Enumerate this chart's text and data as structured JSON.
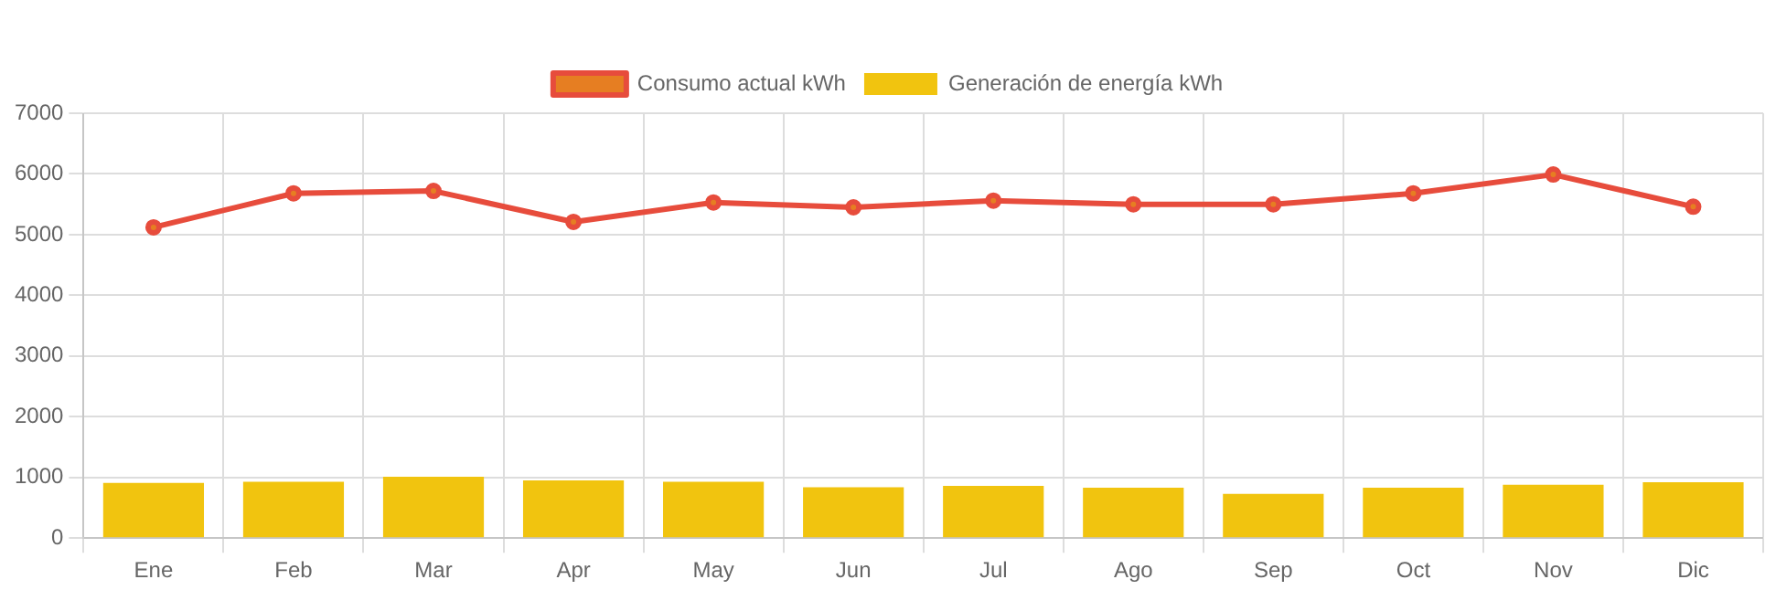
{
  "chart_data": {
    "type": "bar",
    "categories": [
      "Ene",
      "Feb",
      "Mar",
      "Apr",
      "May",
      "Jun",
      "Jul",
      "Ago",
      "Sep",
      "Oct",
      "Nov",
      "Dic"
    ],
    "series": [
      {
        "name": "Consumo actual kWh",
        "type": "line",
        "color": "#e74c3c",
        "values": [
          5120,
          5680,
          5720,
          5210,
          5530,
          5450,
          5560,
          5500,
          5500,
          5680,
          5990,
          5460
        ]
      },
      {
        "name": "Generación de energía kWh",
        "color": "#f1c40f",
        "values": [
          910,
          930,
          1010,
          950,
          930,
          840,
          860,
          830,
          730,
          830,
          880,
          920
        ]
      }
    ],
    "ylim": [
      0,
      7000
    ],
    "yticks": [
      0,
      1000,
      2000,
      3000,
      4000,
      5000,
      6000,
      7000
    ],
    "grid": true,
    "legend": "top",
    "marker": "circle"
  }
}
